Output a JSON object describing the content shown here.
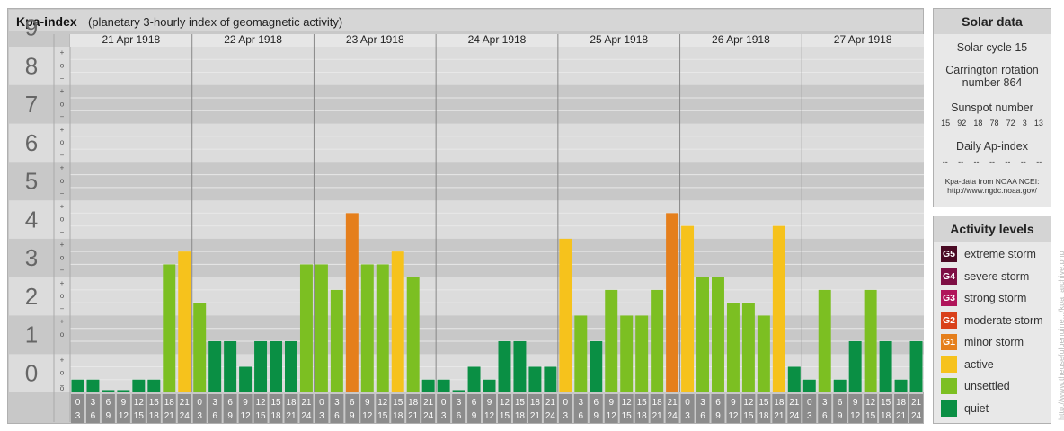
{
  "header": {
    "title": "Kpa-index",
    "subtitle": "(planetary 3-hourly index of geomagnetic activity)"
  },
  "chart_data": {
    "type": "bar",
    "ylim": [
      0,
      9
    ],
    "y_ticks": [
      "0",
      "1",
      "2",
      "3",
      "4",
      "5",
      "6",
      "7",
      "8",
      "9"
    ],
    "sub_ticks": [
      "+",
      "o",
      "−"
    ],
    "days": [
      "21 Apr 1918",
      "22 Apr 1918",
      "23 Apr 1918",
      "24 Apr 1918",
      "25 Apr 1918",
      "26 Apr 1918",
      "27 Apr 1918"
    ],
    "interval_starts": [
      "0",
      "3",
      "6",
      "9",
      "12",
      "15",
      "18",
      "21"
    ],
    "interval_ends": [
      "3",
      "6",
      "9",
      "12",
      "15",
      "18",
      "21",
      "24"
    ],
    "values": [
      [
        0.333,
        0.333,
        0,
        0,
        0.333,
        0.333,
        3.333,
        3.667
      ],
      [
        2.333,
        1.333,
        1.333,
        0.667,
        1.333,
        1.333,
        1.333,
        3.333
      ],
      [
        3.333,
        2.667,
        4.667,
        3.333,
        3.333,
        3.667,
        3,
        0.333
      ],
      [
        0.333,
        0,
        0.667,
        0.333,
        1.333,
        1.333,
        0.667,
        0.667
      ],
      [
        4,
        2,
        1.333,
        2.667,
        2,
        2,
        2.667,
        4.667
      ],
      [
        4.333,
        3,
        3,
        2.333,
        2.333,
        2,
        4.333,
        0.667
      ],
      [
        0.333,
        2.667,
        0.333,
        1.333,
        2.667,
        1.333,
        0.333,
        1.333
      ]
    ],
    "colors": {
      "quiet": "#0a8f44",
      "unsettled": "#7cbf22",
      "active": "#f6c21c",
      "G1": "#e57f1c",
      "G2": "#d9401a",
      "G3": "#b0145a",
      "G4": "#7e0f44",
      "G5": "#4a0a24"
    }
  },
  "solar_data": {
    "title": "Solar data",
    "cycle": "Solar cycle 15",
    "carrington": "Carrington rotation number 864",
    "sunspot_label": "Sunspot number",
    "sunspot_values": [
      "15",
      "92",
      "18",
      "78",
      "72",
      "3",
      "13"
    ],
    "ap_label": "Daily Ap-index",
    "ap_values": [
      "--",
      "--",
      "--",
      "--",
      "--",
      "--",
      "--"
    ],
    "source_line1": "Kpa-data from NOAA NCEI:",
    "source_line2": "http://www.ngdc.noaa.gov/"
  },
  "activity_levels": {
    "title": "Activity levels",
    "items": [
      {
        "code": "G5",
        "label": "extreme storm",
        "color": "#4a0a24"
      },
      {
        "code": "G4",
        "label": "severe storm",
        "color": "#7e0f44"
      },
      {
        "code": "G3",
        "label": "strong storm",
        "color": "#b0145a"
      },
      {
        "code": "G2",
        "label": "moderate storm",
        "color": "#d9401a"
      },
      {
        "code": "G1",
        "label": "minor storm",
        "color": "#e57f1c"
      },
      {
        "code": "",
        "label": "active",
        "color": "#f6c21c"
      },
      {
        "code": "",
        "label": "unsettled",
        "color": "#7cbf22"
      },
      {
        "code": "",
        "label": "quiet",
        "color": "#0a8f44"
      }
    ]
  },
  "watermark": "http://www.theusefulgenuine.../kpa_archive.php"
}
